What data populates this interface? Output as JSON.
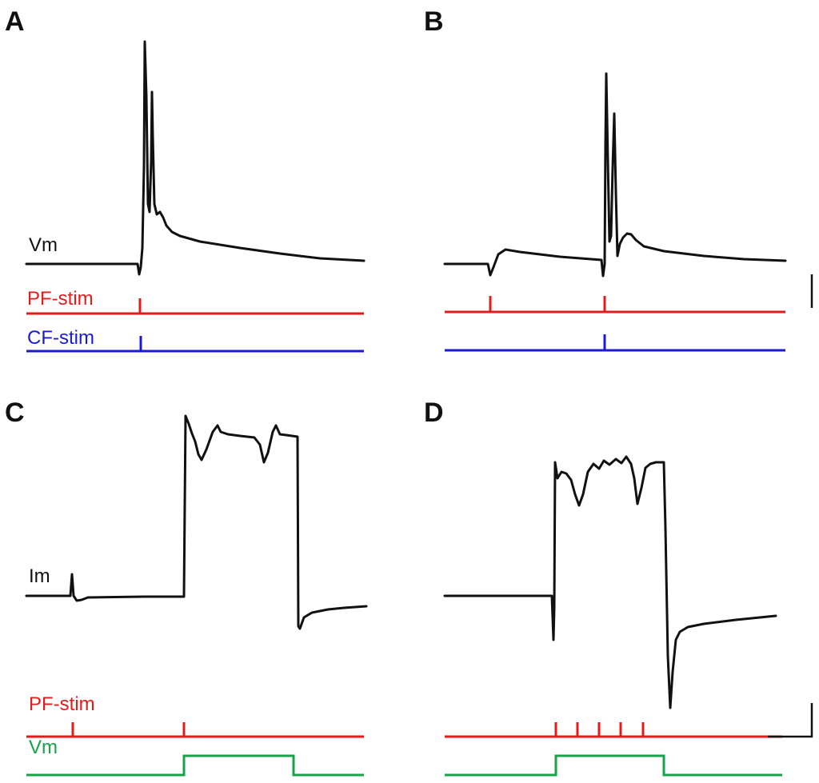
{
  "panels": {
    "a": {
      "letter": "A",
      "trace_label": "Vm",
      "stim1_label": "PF-stim",
      "stim2_label": "CF-stim"
    },
    "b": {
      "letter": "B"
    },
    "c": {
      "letter": "C",
      "trace_label": "Im",
      "stim1_label": "PF-stim",
      "stim2_label": "Vm"
    },
    "d": {
      "letter": "D"
    }
  },
  "colors": {
    "trace": "#111111",
    "pf_stim": "#e31b1b",
    "cf_stim": "#1a1ad6",
    "vm_step": "#16a34a"
  }
}
